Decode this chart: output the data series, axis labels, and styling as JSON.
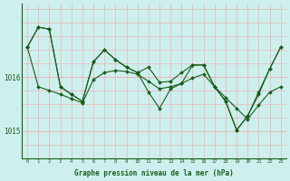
{
  "xlabel": "Graphe pression niveau de la mer (hPa)",
  "bg_color": "#cdf0ee",
  "grid_color": "#e8b4b4",
  "line_color": "#1a5c1a",
  "hours": [
    0,
    1,
    2,
    3,
    4,
    5,
    6,
    7,
    8,
    9,
    10,
    11,
    12,
    13,
    14,
    15,
    16,
    17,
    18,
    19,
    20,
    21,
    22,
    23
  ],
  "s1": [
    1016.55,
    1016.92,
    1016.88,
    1015.82,
    1015.68,
    1015.55,
    1016.28,
    1016.5,
    1016.32,
    1016.18,
    1016.08,
    1016.18,
    1015.9,
    1015.92,
    1016.08,
    1016.22,
    1016.22,
    1015.82,
    1015.55,
    1015.02,
    1015.28,
    1015.68,
    1016.15,
    1016.55
  ],
  "s2": [
    1016.55,
    1016.92,
    1016.88,
    1015.82,
    1015.68,
    1015.55,
    1016.28,
    1016.5,
    1016.32,
    1016.18,
    1016.08,
    1015.72,
    1015.42,
    1015.78,
    1015.88,
    1016.22,
    1016.22,
    1015.82,
    1015.55,
    1015.02,
    1015.28,
    1015.72,
    1016.15,
    1016.55
  ],
  "s3": [
    1016.55,
    1015.82,
    1015.75,
    1015.68,
    1015.6,
    1015.52,
    1015.95,
    1016.08,
    1016.12,
    1016.1,
    1016.05,
    1015.92,
    1015.78,
    1015.82,
    1015.88,
    1015.98,
    1016.05,
    1015.82,
    1015.62,
    1015.42,
    1015.22,
    1015.48,
    1015.72,
    1015.82
  ],
  "ylim": [
    1014.5,
    1017.35
  ],
  "yticks": [
    1015.0,
    1016.0
  ],
  "ytick_labels": [
    "1015",
    "1016"
  ],
  "xlim": [
    -0.5,
    23.5
  ]
}
